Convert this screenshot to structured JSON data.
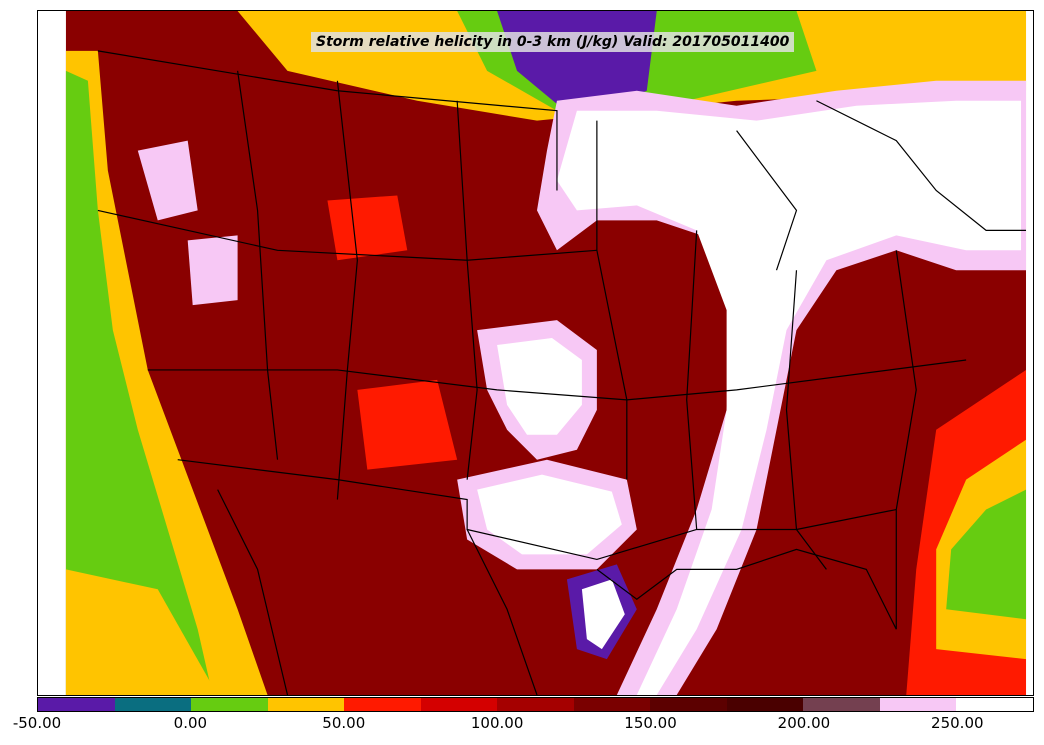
{
  "title": "Storm relative helicity in 0-3 km (J/kg) Valid: 201705011400",
  "colorbar": {
    "min": -50,
    "max": 275,
    "step": 25,
    "colors": [
      "#5a1aa8",
      "#0a6e80",
      "#66cc11",
      "#ffc400",
      "#ff1a00",
      "#d40000",
      "#a50000",
      "#7a0000",
      "#5c0000",
      "#4a0000",
      "#744050",
      "#f7c8f5",
      "#ffffff"
    ],
    "tick_values": [
      -50,
      0,
      50,
      100,
      150,
      200,
      250
    ],
    "tick_labels": [
      "-50.00",
      "0.00",
      "50.00",
      "100.00",
      "150.00",
      "200.00",
      "250.00"
    ]
  }
}
